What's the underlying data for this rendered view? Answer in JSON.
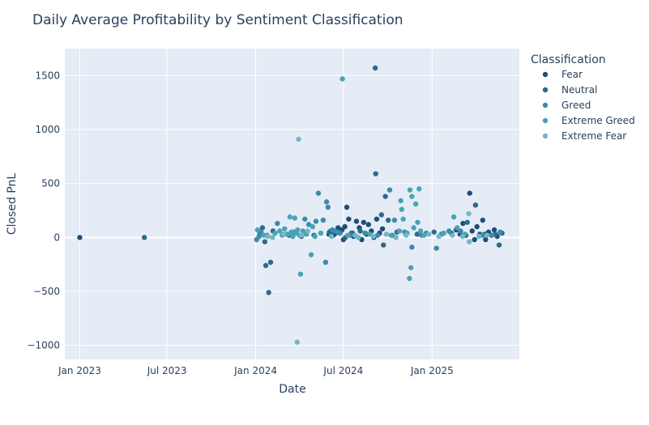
{
  "chart_data": {
    "type": "scatter",
    "title": "Daily Average Profitability by Sentiment Classification",
    "xlabel": "Date",
    "ylabel": "Closed PnL",
    "xlim": [
      "2022-12-01",
      "2025-07-01"
    ],
    "ylim": [
      -1130,
      1750
    ],
    "x_ticks": [
      {
        "date": "2023-01-01",
        "label": "Jan 2023"
      },
      {
        "date": "2023-07-01",
        "label": "Jul 2023"
      },
      {
        "date": "2024-01-01",
        "label": "Jan 2024"
      },
      {
        "date": "2024-07-01",
        "label": "Jul 2024"
      },
      {
        "date": "2025-01-01",
        "label": "Jan 2025"
      }
    ],
    "y_ticks": [
      {
        "value": 1500,
        "label": "1500"
      },
      {
        "value": 1000,
        "label": "1000"
      },
      {
        "value": 500,
        "label": "500"
      },
      {
        "value": 0,
        "label": "0"
      },
      {
        "value": -500,
        "label": "−500"
      },
      {
        "value": -1000,
        "label": "−1000"
      }
    ],
    "grid": true,
    "legend": {
      "title": "Classification",
      "placement": "right"
    },
    "series": [
      {
        "name": "Fear",
        "color": "#1f4e79",
        "points": [
          [
            "2023-01-01",
            0
          ],
          [
            "2024-06-01",
            30
          ],
          [
            "2024-06-05",
            60
          ],
          [
            "2024-06-10",
            20
          ],
          [
            "2024-06-15",
            40
          ],
          [
            "2024-06-20",
            90
          ],
          [
            "2024-06-25",
            50
          ],
          [
            "2024-06-28",
            70
          ],
          [
            "2024-07-01",
            -20
          ],
          [
            "2024-07-04",
            100
          ],
          [
            "2024-07-08",
            280
          ],
          [
            "2024-07-12",
            170
          ],
          [
            "2024-07-18",
            40
          ],
          [
            "2024-07-22",
            10
          ],
          [
            "2024-07-28",
            150
          ],
          [
            "2024-08-03",
            90
          ],
          [
            "2024-08-08",
            -20
          ],
          [
            "2024-08-12",
            140
          ],
          [
            "2024-08-18",
            30
          ],
          [
            "2024-08-22",
            120
          ],
          [
            "2024-08-28",
            60
          ],
          [
            "2024-09-02",
            0
          ],
          [
            "2024-09-08",
            170
          ],
          [
            "2024-09-14",
            40
          ],
          [
            "2024-09-20",
            80
          ],
          [
            "2025-02-20",
            70
          ],
          [
            "2025-02-28",
            30
          ],
          [
            "2025-03-06",
            130
          ],
          [
            "2025-03-12",
            20
          ],
          [
            "2025-03-20",
            410
          ],
          [
            "2025-03-25",
            60
          ],
          [
            "2025-03-30",
            -20
          ],
          [
            "2025-04-04",
            100
          ],
          [
            "2025-04-10",
            30
          ],
          [
            "2025-04-16",
            160
          ],
          [
            "2025-04-22",
            -20
          ],
          [
            "2025-04-28",
            50
          ],
          [
            "2025-05-04",
            20
          ],
          [
            "2025-05-10",
            70
          ],
          [
            "2025-05-16",
            10
          ]
        ]
      },
      {
        "name": "Neutral",
        "color": "#2e6a8c",
        "points": [
          [
            "2023-05-15",
            0
          ],
          [
            "2024-01-10",
            40
          ],
          [
            "2024-01-15",
            90
          ],
          [
            "2024-01-20",
            -40
          ],
          [
            "2024-01-22",
            -260
          ],
          [
            "2024-01-28",
            -510
          ],
          [
            "2024-02-01",
            -230
          ],
          [
            "2024-02-06",
            60
          ],
          [
            "2024-03-10",
            20
          ],
          [
            "2024-04-05",
            10
          ],
          [
            "2024-05-01",
            20
          ],
          [
            "2024-06-02",
            50
          ],
          [
            "2024-07-05",
            0
          ],
          [
            "2024-07-20",
            40
          ],
          [
            "2024-08-05",
            60
          ],
          [
            "2024-09-05",
            1570
          ],
          [
            "2024-09-06",
            590
          ],
          [
            "2024-09-18",
            210
          ],
          [
            "2024-09-22",
            -70
          ],
          [
            "2024-09-26",
            380
          ],
          [
            "2024-10-02",
            160
          ],
          [
            "2024-10-10",
            20
          ],
          [
            "2024-10-20",
            50
          ],
          [
            "2024-12-01",
            30
          ],
          [
            "2025-01-05",
            50
          ],
          [
            "2025-02-10",
            40
          ],
          [
            "2025-03-15",
            140
          ],
          [
            "2025-04-01",
            300
          ],
          [
            "2025-04-20",
            30
          ],
          [
            "2025-05-12",
            30
          ],
          [
            "2025-05-20",
            -70
          ],
          [
            "2025-05-26",
            40
          ]
        ]
      },
      {
        "name": "Greed",
        "color": "#3b8bab",
        "points": [
          [
            "2024-01-03",
            -20
          ],
          [
            "2024-01-08",
            10
          ],
          [
            "2024-01-12",
            50
          ],
          [
            "2024-01-25",
            20
          ],
          [
            "2024-02-15",
            130
          ],
          [
            "2024-03-05",
            30
          ],
          [
            "2024-03-20",
            50
          ],
          [
            "2024-04-12",
            170
          ],
          [
            "2024-04-20",
            120
          ],
          [
            "2024-05-05",
            150
          ],
          [
            "2024-05-10",
            410
          ],
          [
            "2024-05-20",
            160
          ],
          [
            "2024-05-25",
            -230
          ],
          [
            "2024-05-27",
            330
          ],
          [
            "2024-05-30",
            280
          ],
          [
            "2024-06-08",
            70
          ],
          [
            "2024-06-12",
            60
          ],
          [
            "2024-06-18",
            50
          ],
          [
            "2024-06-24",
            40
          ],
          [
            "2024-07-15",
            20
          ],
          [
            "2024-08-15",
            40
          ],
          [
            "2024-09-10",
            20
          ],
          [
            "2024-10-05",
            440
          ],
          [
            "2024-10-15",
            160
          ],
          [
            "2024-11-05",
            50
          ],
          [
            "2024-11-20",
            -90
          ],
          [
            "2024-12-10",
            20
          ],
          [
            "2024-12-20",
            40
          ],
          [
            "2025-01-10",
            -100
          ],
          [
            "2025-01-20",
            30
          ],
          [
            "2025-02-05",
            60
          ],
          [
            "2025-03-01",
            60
          ],
          [
            "2025-04-15",
            20
          ],
          [
            "2025-05-05",
            20
          ],
          [
            "2025-05-22",
            50
          ]
        ]
      },
      {
        "name": "Extreme Greed",
        "color": "#4aa3b5",
        "points": [
          [
            "2024-01-05",
            70
          ],
          [
            "2024-01-18",
            20
          ],
          [
            "2024-02-10",
            40
          ],
          [
            "2024-02-20",
            60
          ],
          [
            "2024-02-25",
            20
          ],
          [
            "2024-03-01",
            80
          ],
          [
            "2024-03-08",
            30
          ],
          [
            "2024-03-12",
            190
          ],
          [
            "2024-03-15",
            50
          ],
          [
            "2024-03-18",
            10
          ],
          [
            "2024-03-22",
            180
          ],
          [
            "2024-03-25",
            40
          ],
          [
            "2024-03-28",
            70
          ],
          [
            "2024-04-01",
            20
          ],
          [
            "2024-04-03",
            -340
          ],
          [
            "2024-04-08",
            60
          ],
          [
            "2024-04-15",
            30
          ],
          [
            "2024-04-25",
            -160
          ],
          [
            "2024-04-28",
            100
          ],
          [
            "2024-05-03",
            10
          ],
          [
            "2024-05-15",
            40
          ],
          [
            "2024-06-29",
            1470
          ],
          [
            "2024-07-10",
            20
          ],
          [
            "2024-08-25",
            30
          ],
          [
            "2024-10-08",
            20
          ],
          [
            "2024-10-25",
            60
          ],
          [
            "2024-10-28",
            340
          ],
          [
            "2024-10-30",
            260
          ],
          [
            "2024-11-02",
            170
          ],
          [
            "2024-11-10",
            40
          ],
          [
            "2024-11-15",
            -380
          ],
          [
            "2024-11-16",
            440
          ],
          [
            "2024-11-18",
            -280
          ],
          [
            "2024-11-20",
            380
          ],
          [
            "2024-11-24",
            90
          ],
          [
            "2024-11-28",
            310
          ],
          [
            "2024-12-02",
            140
          ],
          [
            "2024-12-05",
            450
          ],
          [
            "2024-12-08",
            60
          ],
          [
            "2024-12-15",
            20
          ],
          [
            "2025-01-25",
            40
          ],
          [
            "2025-02-15",
            190
          ],
          [
            "2025-02-22",
            90
          ],
          [
            "2025-03-10",
            30
          ]
        ]
      },
      {
        "name": "Extreme Fear",
        "color": "#72b8c4",
        "points": [
          [
            "2024-01-26",
            10
          ],
          [
            "2024-02-05",
            0
          ],
          [
            "2024-02-28",
            30
          ],
          [
            "2024-03-30",
            910
          ],
          [
            "2024-03-27",
            -970
          ],
          [
            "2024-04-05",
            20
          ],
          [
            "2024-04-18",
            60
          ],
          [
            "2024-06-06",
            10
          ],
          [
            "2024-07-25",
            20
          ],
          [
            "2024-08-01",
            0
          ],
          [
            "2024-09-01",
            10
          ],
          [
            "2024-09-28",
            30
          ],
          [
            "2024-10-18",
            0
          ],
          [
            "2024-11-08",
            20
          ],
          [
            "2024-12-25",
            30
          ],
          [
            "2025-01-15",
            10
          ],
          [
            "2025-02-12",
            20
          ],
          [
            "2025-03-05",
            10
          ],
          [
            "2025-03-18",
            220
          ],
          [
            "2025-03-19",
            -40
          ],
          [
            "2025-04-08",
            10
          ],
          [
            "2025-04-25",
            20
          ]
        ]
      }
    ]
  }
}
